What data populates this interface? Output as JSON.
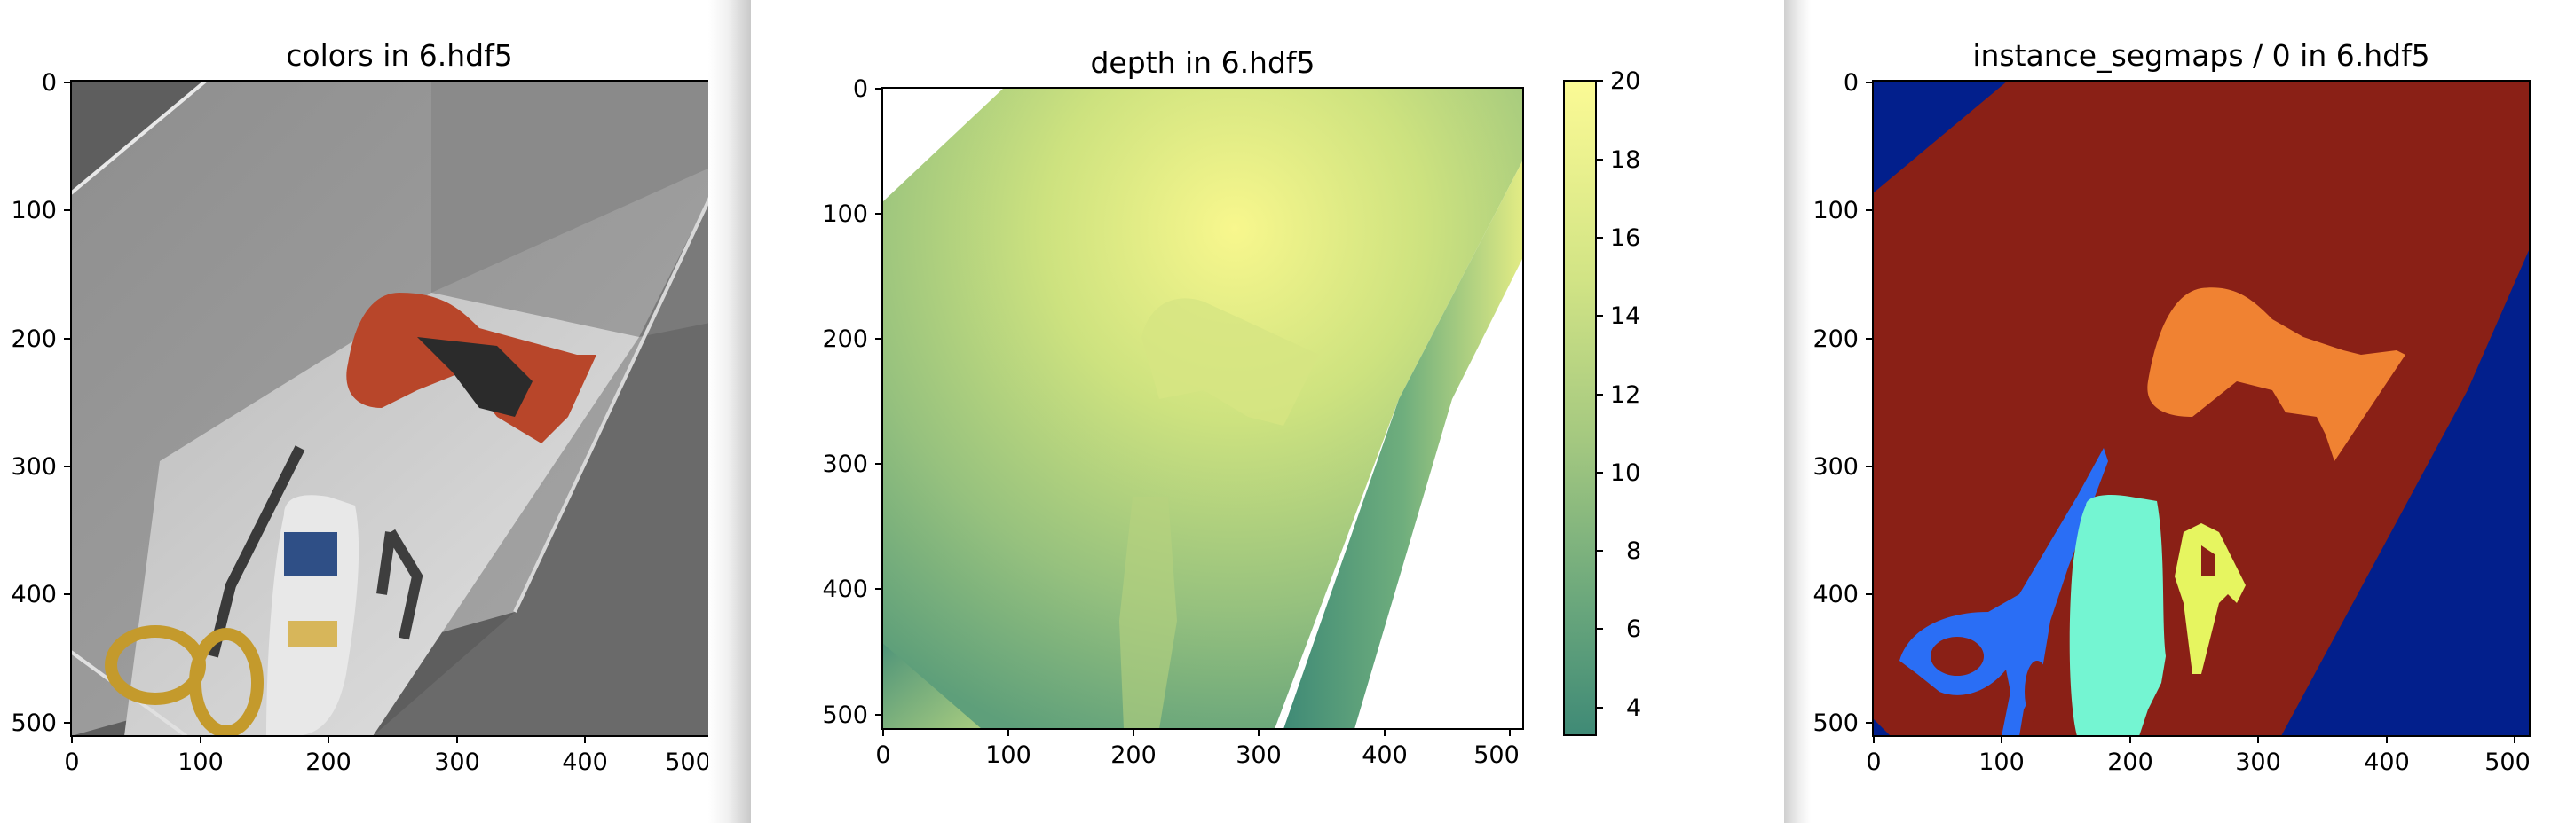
{
  "panels": {
    "colors": {
      "title": "colors in 6.hdf5",
      "xticks": [
        "0",
        "100",
        "200",
        "300",
        "400",
        "500"
      ],
      "yticks": [
        "0",
        "100",
        "200",
        "300",
        "400",
        "500"
      ]
    },
    "depth": {
      "title": "depth in 6.hdf5",
      "xticks": [
        "0",
        "100",
        "200",
        "300",
        "400",
        "500"
      ],
      "yticks": [
        "0",
        "100",
        "200",
        "300",
        "400",
        "500"
      ],
      "colorbar_ticks": [
        "20",
        "18",
        "16",
        "14",
        "12",
        "10",
        "8",
        "6",
        "4"
      ]
    },
    "segmap": {
      "title": "instance_segmaps / 0 in 6.hdf5",
      "xticks": [
        "0",
        "100",
        "200",
        "300",
        "400",
        "500"
      ],
      "yticks": [
        "0",
        "100",
        "200",
        "300",
        "400",
        "500"
      ]
    }
  },
  "colors": {
    "seg_box": "#8a2016",
    "seg_bg": "#021f8c",
    "seg_drill": "#f08232",
    "seg_scissors": "#2a6ef5",
    "seg_bottle": "#74f5d2",
    "seg_clamp": "#e6f560",
    "drill_orange": "#b8462a"
  }
}
